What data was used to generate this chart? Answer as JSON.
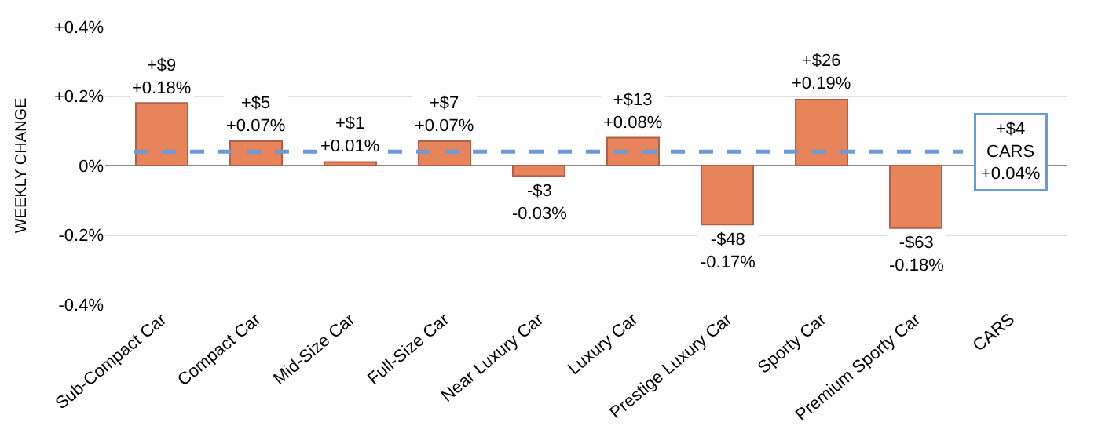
{
  "chart_data": {
    "type": "bar",
    "ylabel": "WEEKLY CHANGE",
    "categories": [
      "Sub-Compact Car",
      "Compact Car",
      "Mid-Size Car",
      "Full-Size Car",
      "Near Luxury Car",
      "Luxury Car",
      "Prestige Luxury Car",
      "Sporty Car",
      "Premium Sporty Car",
      "CARS"
    ],
    "values": [
      0.18,
      0.07,
      0.01,
      0.07,
      -0.03,
      0.08,
      -0.17,
      0.19,
      -0.18,
      null
    ],
    "value_labels": [
      "+$9\n+0.18%",
      "+$5\n+0.07%",
      "+$1\n+0.01%",
      "+$7\n+0.07%",
      "-$3\n-0.03%",
      "+$13\n+0.08%",
      "-$48\n-0.17%",
      "+$26\n+0.19%",
      "-$63\n-0.18%",
      null
    ],
    "color": "#e8845a",
    "ylim": [
      -0.4,
      0.4
    ],
    "yticks": [
      {
        "value": -0.4,
        "label": "-0.4%"
      },
      {
        "value": -0.2,
        "label": "-0.2%"
      },
      {
        "value": 0,
        "label": "0%"
      },
      {
        "value": 0.2,
        "label": "+0.2%"
      },
      {
        "value": 0.4,
        "label": "+0.4%"
      }
    ],
    "grid": "y",
    "ref_lines": [
      {
        "axis": "y",
        "value": 0.04,
        "label": "+$4\nCARS\n+0.04%",
        "color": "#6a9bd8",
        "line_style": "dashed"
      }
    ]
  }
}
